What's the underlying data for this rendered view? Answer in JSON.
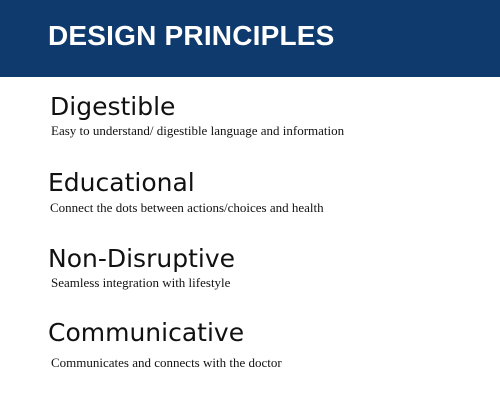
{
  "header": {
    "title": "DESIGN PRINCIPLES",
    "background_color": "#0e3a6e"
  },
  "principles": [
    {
      "title": "Digestible",
      "description": "Easy to understand/ digestible language and information"
    },
    {
      "title": "Educational",
      "description": "Connect the dots between actions/choices and health"
    },
    {
      "title": "Non-Disruptive",
      "description": "Seamless integration with lifestyle"
    },
    {
      "title": "Communicative",
      "description": "Communicates and connects with the  doctor"
    }
  ]
}
